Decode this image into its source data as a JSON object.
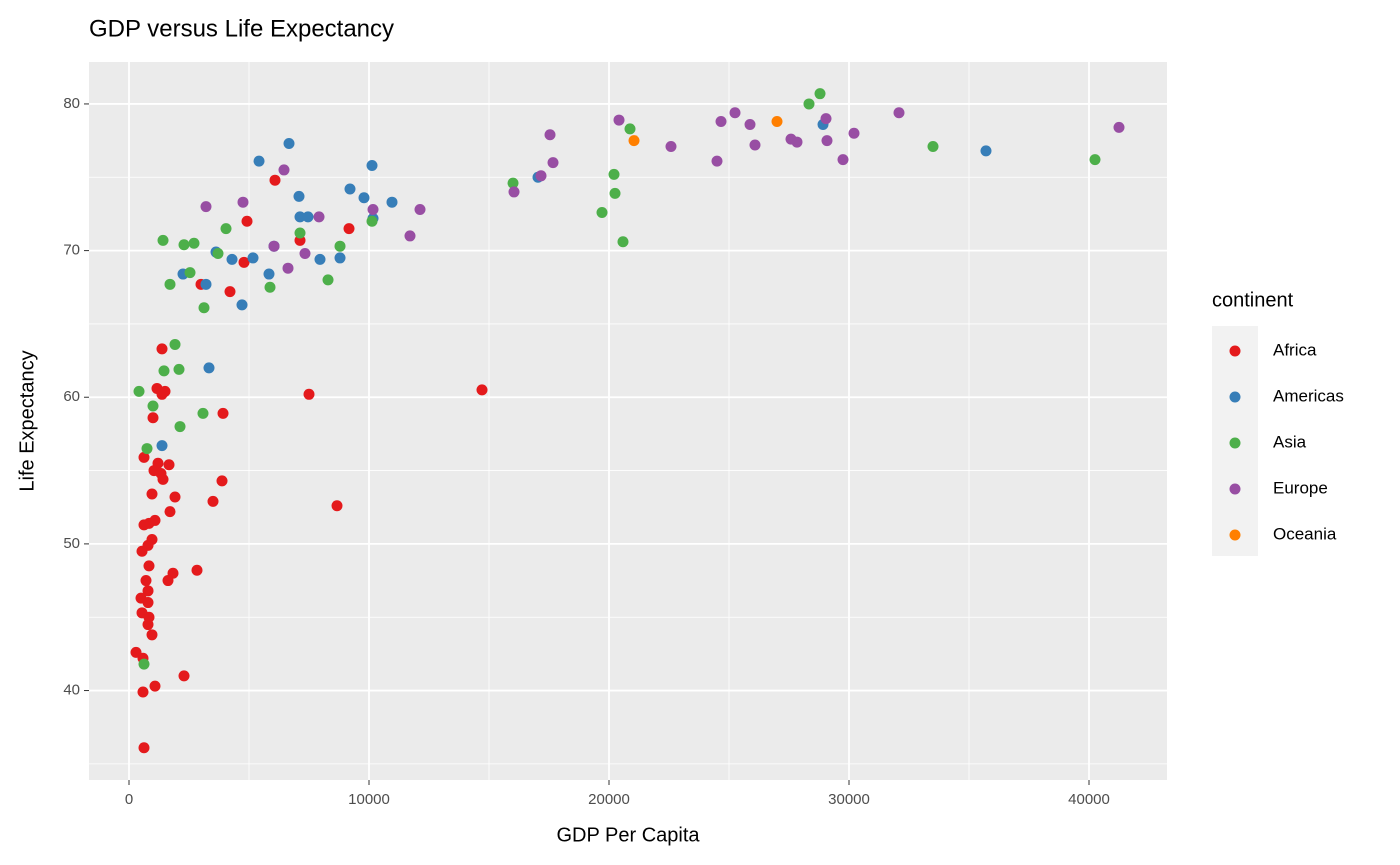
{
  "chart_data": {
    "type": "scatter",
    "title": "GDP versus Life Expectancy",
    "x_label": "GDP Per Capita",
    "y_label": "Life Expectancy",
    "legend_title": "continent",
    "xlim": [
      -1667,
      43250
    ],
    "ylim": [
      33.9,
      82.86
    ],
    "xticks": [
      0,
      10000,
      20000,
      30000,
      40000
    ],
    "yticks": [
      40,
      50,
      60,
      70,
      80
    ],
    "grid": true,
    "legend_position": "right",
    "series": [
      {
        "name": "Africa",
        "color": "#e41a1c",
        "x": [
          6083,
          4917,
          7125,
          9167,
          4792,
          3000,
          4208,
          1375,
          1167,
          1500,
          1375,
          14708,
          7500,
          3917,
          1000,
          8667,
          625,
          1208,
          1042,
          1667,
          1333,
          1417,
          3875,
          3500,
          1917,
          958,
          1708,
          1083,
          833,
          625,
          958,
          792,
          542,
          2833,
          833,
          1833,
          708,
          1625,
          792,
          500,
          792,
          542,
          833,
          792,
          958,
          292,
          583,
          2292,
          1083,
          583,
          625
        ],
        "y": [
          74.8,
          72.0,
          70.7,
          71.5,
          69.2,
          67.7,
          67.2,
          63.3,
          60.6,
          60.4,
          60.2,
          60.5,
          60.2,
          58.9,
          58.6,
          52.6,
          55.9,
          55.5,
          55.0,
          55.4,
          54.8,
          54.4,
          54.3,
          52.9,
          53.2,
          53.4,
          52.2,
          51.6,
          51.4,
          51.3,
          50.3,
          49.9,
          49.5,
          48.2,
          48.5,
          48.0,
          47.5,
          47.5,
          46.8,
          46.3,
          46.0,
          45.3,
          45.0,
          44.5,
          43.8,
          42.6,
          42.2,
          41.0,
          40.3,
          39.9,
          36.1
        ]
      },
      {
        "name": "Americas",
        "color": "#377eb8",
        "x": [
          6667,
          5417,
          10125,
          9208,
          7083,
          9792,
          10958,
          7125,
          7458,
          10167,
          6042,
          5167,
          4292,
          7958,
          8792,
          3625,
          2250,
          5833,
          3208,
          4708,
          3333,
          1375,
          17042,
          28917,
          35708
        ],
        "y": [
          77.3,
          76.1,
          75.8,
          74.2,
          73.7,
          73.6,
          73.3,
          72.3,
          72.3,
          72.2,
          70.3,
          69.5,
          69.4,
          69.4,
          69.5,
          69.9,
          68.4,
          68.4,
          67.7,
          66.3,
          62.0,
          56.7,
          75.0,
          78.6,
          76.8
        ]
      },
      {
        "name": "Asia",
        "color": "#4daf4a",
        "x": [
          28792,
          28333,
          20875,
          33500,
          40250,
          16000,
          20208,
          20250,
          19708,
          20583,
          10125,
          7125,
          4042,
          1417,
          2292,
          2708,
          3708,
          2542,
          8792,
          8292,
          1708,
          5875,
          3125,
          1917,
          2083,
          1458,
          417,
          1000,
          3083,
          2125,
          750,
          625
        ],
        "y": [
          80.7,
          80.0,
          78.3,
          77.1,
          76.2,
          74.6,
          75.2,
          73.9,
          72.6,
          70.6,
          72.0,
          71.2,
          71.5,
          70.7,
          70.4,
          70.5,
          69.8,
          68.5,
          70.3,
          68.0,
          67.7,
          67.5,
          66.1,
          63.6,
          61.9,
          61.8,
          60.4,
          59.4,
          58.9,
          58.0,
          56.5,
          41.8
        ]
      },
      {
        "name": "Europe",
        "color": "#984ea3",
        "x": [
          41250,
          32083,
          30208,
          29083,
          29750,
          29042,
          27833,
          27583,
          25250,
          24667,
          25875,
          26083,
          24500,
          22583,
          20417,
          17542,
          17667,
          17167,
          16042,
          12125,
          11708,
          10167,
          7917,
          7333,
          6625,
          6458,
          4750,
          3208,
          6042
        ],
        "y": [
          78.4,
          79.4,
          78.0,
          77.5,
          76.2,
          79.0,
          77.4,
          77.6,
          79.4,
          78.8,
          78.6,
          77.2,
          76.1,
          77.1,
          78.9,
          77.9,
          76.0,
          75.1,
          74.0,
          72.8,
          71.0,
          72.8,
          72.3,
          69.8,
          68.8,
          75.5,
          73.3,
          73.0,
          70.3
        ]
      },
      {
        "name": "Oceania",
        "color": "#ff7f00",
        "x": [
          27000,
          21042
        ],
        "y": [
          78.8,
          77.5
        ]
      }
    ]
  }
}
